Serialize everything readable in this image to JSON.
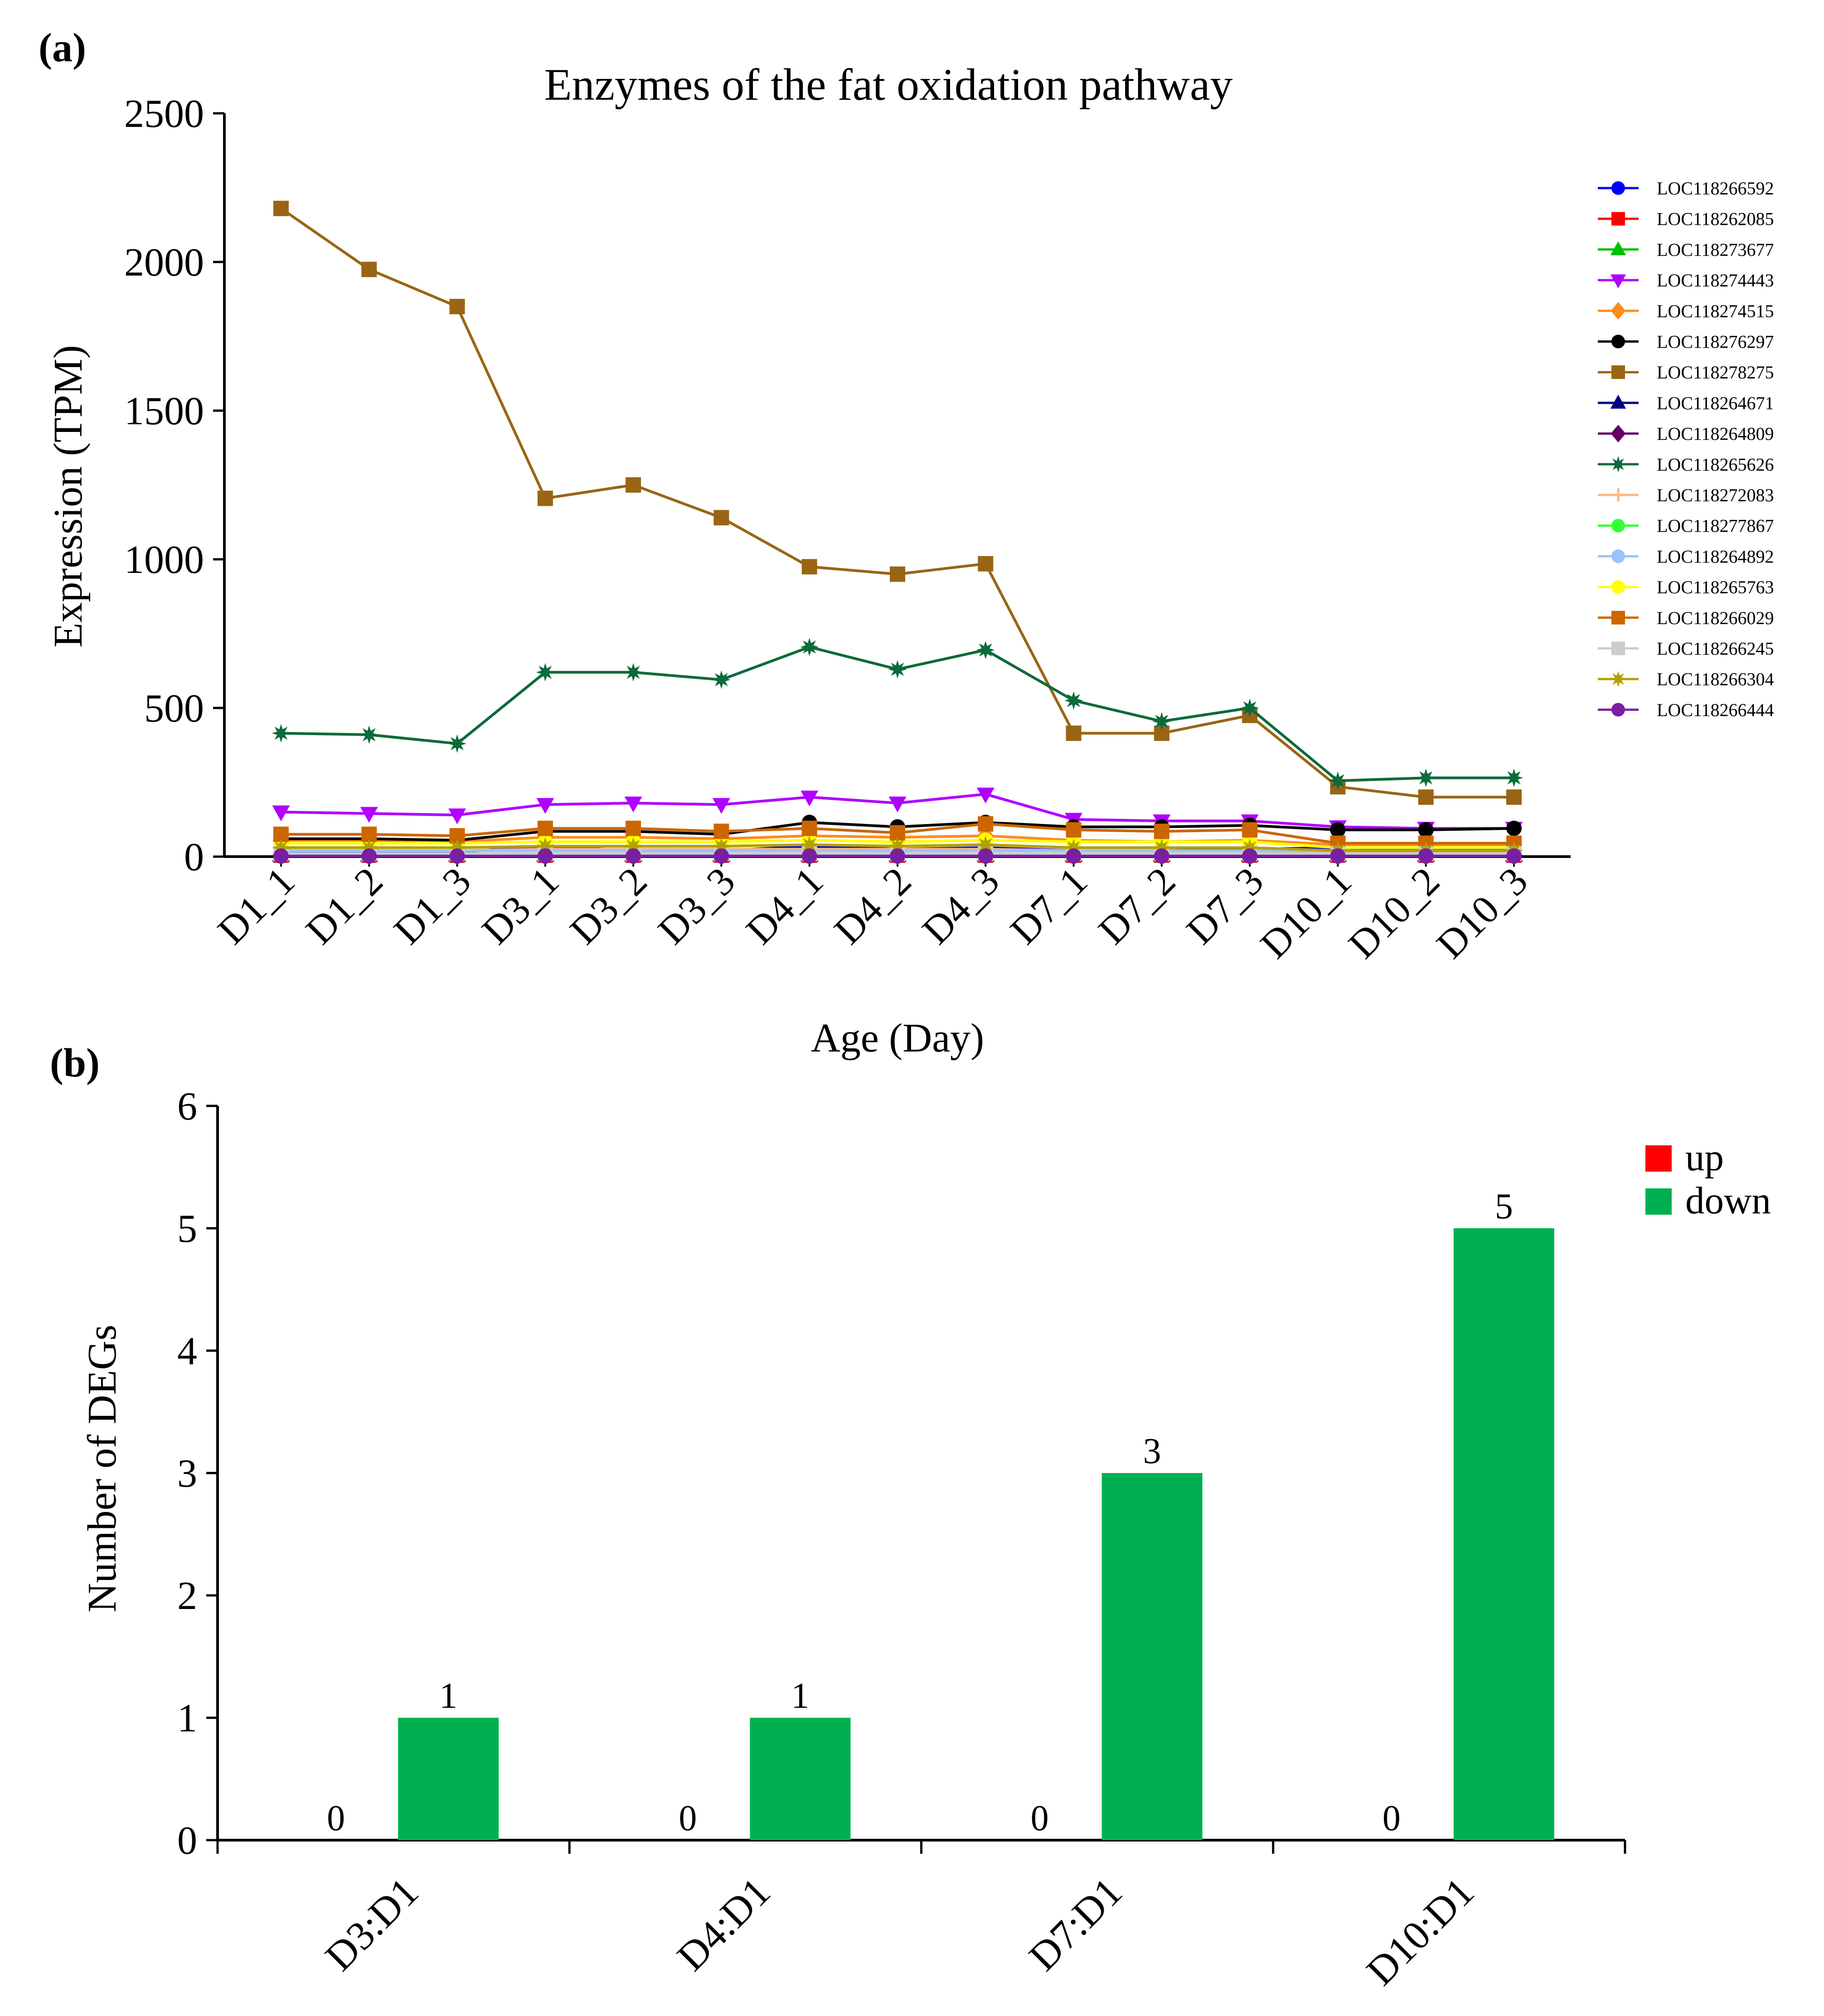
{
  "panel_labels": [
    "(a)",
    "(b)"
  ],
  "chart_data": [
    {
      "type": "line",
      "title": "Enzymes of the fat oxidation pathway",
      "xlabel": "Age (Day)",
      "ylabel": "Expression (TPM)",
      "ylim": [
        0,
        2500
      ],
      "yticks": [
        0,
        500,
        1000,
        1500,
        2000,
        2500
      ],
      "grid": false,
      "legend_position": "right",
      "categories": [
        "D1_1",
        "D1_2",
        "D1_3",
        "D3_1",
        "D3_2",
        "D3_3",
        "D4_1",
        "D4_2",
        "D4_3",
        "D7_1",
        "D7_2",
        "D7_3",
        "D10_1",
        "D10_2",
        "D10_3"
      ],
      "series": [
        {
          "name": "LOC118266592",
          "color": "#0000ff",
          "marker": "circle",
          "values": [
            15,
            15,
            15,
            35,
            20,
            20,
            35,
            25,
            30,
            20,
            20,
            25,
            30,
            25,
            25
          ]
        },
        {
          "name": "LOC118262085",
          "color": "#ff0000",
          "marker": "square",
          "values": [
            5,
            5,
            5,
            5,
            5,
            5,
            5,
            5,
            5,
            5,
            5,
            5,
            5,
            5,
            5
          ]
        },
        {
          "name": "LOC118273677",
          "color": "#00c000",
          "marker": "triangle-up",
          "values": [
            5,
            5,
            5,
            5,
            5,
            5,
            5,
            5,
            5,
            5,
            5,
            5,
            5,
            5,
            5
          ]
        },
        {
          "name": "LOC118274443",
          "color": "#b000ff",
          "marker": "triangle-down",
          "values": [
            150,
            145,
            140,
            175,
            180,
            175,
            200,
            180,
            210,
            125,
            120,
            120,
            100,
            95,
            95
          ]
        },
        {
          "name": "LOC118274515",
          "color": "#ff8c1a",
          "marker": "diamond",
          "values": [
            55,
            55,
            50,
            65,
            65,
            60,
            70,
            65,
            70,
            55,
            50,
            55,
            40,
            40,
            40
          ]
        },
        {
          "name": "LOC118276297",
          "color": "#000000",
          "marker": "circle",
          "values": [
            60,
            60,
            55,
            85,
            85,
            75,
            115,
            100,
            115,
            100,
            100,
            105,
            90,
            90,
            95
          ]
        },
        {
          "name": "LOC118278275",
          "color": "#996515",
          "marker": "square",
          "values": [
            2180,
            1975,
            1850,
            1205,
            1250,
            1140,
            975,
            950,
            985,
            415,
            415,
            475,
            235,
            200,
            200
          ]
        },
        {
          "name": "LOC118264671",
          "color": "#000080",
          "marker": "triangle-up",
          "values": [
            5,
            5,
            5,
            5,
            5,
            5,
            5,
            5,
            5,
            5,
            5,
            5,
            5,
            5,
            5
          ]
        },
        {
          "name": "LOC118264809",
          "color": "#660066",
          "marker": "diamond",
          "values": [
            5,
            5,
            5,
            5,
            5,
            5,
            5,
            5,
            5,
            5,
            5,
            5,
            5,
            5,
            5
          ]
        },
        {
          "name": "LOC118265626",
          "color": "#0b6b3a",
          "marker": "star",
          "values": [
            415,
            410,
            380,
            620,
            620,
            595,
            705,
            630,
            695,
            525,
            455,
            500,
            255,
            265,
            265
          ]
        },
        {
          "name": "LOC118272083",
          "color": "#ffb380",
          "marker": "plus",
          "values": [
            20,
            20,
            20,
            25,
            25,
            25,
            25,
            25,
            25,
            20,
            20,
            20,
            15,
            15,
            15
          ]
        },
        {
          "name": "LOC118277867",
          "color": "#33ff33",
          "marker": "circle",
          "values": [
            10,
            10,
            10,
            10,
            10,
            10,
            10,
            10,
            10,
            10,
            10,
            10,
            10,
            10,
            10
          ]
        },
        {
          "name": "LOC118264892",
          "color": "#99c2ff",
          "marker": "circle",
          "values": [
            20,
            20,
            20,
            20,
            20,
            20,
            20,
            20,
            20,
            20,
            20,
            20,
            20,
            20,
            20
          ]
        },
        {
          "name": "LOC118265763",
          "color": "#ffff00",
          "marker": "circle",
          "values": [
            45,
            45,
            45,
            50,
            50,
            50,
            55,
            50,
            55,
            50,
            50,
            50,
            30,
            30,
            30
          ]
        },
        {
          "name": "LOC118266029",
          "color": "#cc6600",
          "marker": "square",
          "values": [
            75,
            75,
            70,
            95,
            95,
            85,
            95,
            80,
            110,
            90,
            85,
            90,
            45,
            45,
            45
          ]
        },
        {
          "name": "LOC118266245",
          "color": "#cccccc",
          "marker": "square",
          "values": [
            10,
            10,
            10,
            10,
            10,
            10,
            10,
            10,
            10,
            10,
            10,
            10,
            10,
            10,
            10
          ]
        },
        {
          "name": "LOC118266304",
          "color": "#b3a000",
          "marker": "star",
          "values": [
            30,
            30,
            30,
            35,
            35,
            35,
            40,
            35,
            40,
            30,
            30,
            30,
            20,
            20,
            20
          ]
        },
        {
          "name": "LOC118266444",
          "color": "#7a1fa2",
          "marker": "circle",
          "values": [
            2,
            2,
            2,
            2,
            2,
            2,
            2,
            2,
            2,
            2,
            2,
            2,
            2,
            2,
            2
          ]
        }
      ]
    },
    {
      "type": "bar",
      "title": "",
      "xlabel": "",
      "ylabel": "Number of DEGs",
      "ylim": [
        0,
        6
      ],
      "yticks": [
        0,
        1,
        2,
        3,
        4,
        5,
        6
      ],
      "grid": false,
      "legend_position": "top-right",
      "categories": [
        "D3:D1",
        "D4:D1",
        "D7:D1",
        "D10:D1"
      ],
      "series": [
        {
          "name": "up",
          "color": "#ff0000",
          "values": [
            0,
            0,
            0,
            0
          ]
        },
        {
          "name": "down",
          "color": "#00b050",
          "values": [
            1,
            1,
            3,
            5
          ]
        }
      ]
    }
  ]
}
